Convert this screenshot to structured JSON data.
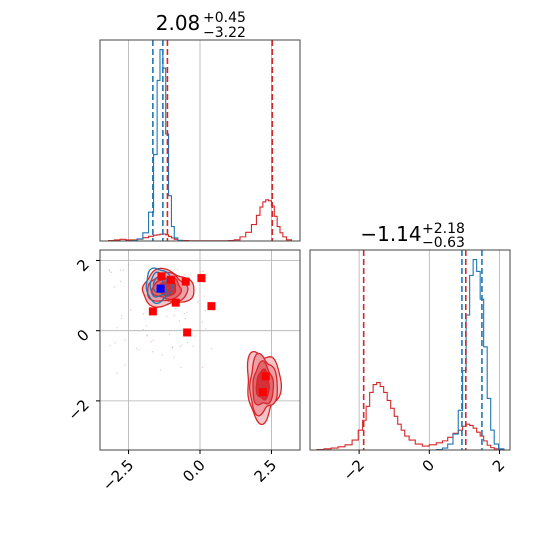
{
  "chart_data": {
    "type": "corner",
    "parameters": [
      {
        "title": "2.08",
        "title_sup": "+0.45",
        "title_sub": "−3.22",
        "range": [
          -3.5,
          3.5
        ],
        "ticks": [
          -2.5,
          0.0,
          2.5
        ],
        "tick_labels": [
          "−2.5",
          "0.0",
          "2.5"
        ]
      },
      {
        "title": "−1.14",
        "title_sup": "+2.18",
        "title_sub": "−0.63",
        "range": [
          -3.4,
          2.3
        ],
        "ticks": [
          -2,
          0,
          2
        ],
        "tick_labels": [
          "−2",
          "0",
          "2"
        ]
      }
    ],
    "grid": true,
    "colors": {
      "red": "#d62728",
      "blue": "#1f77b4"
    },
    "hist1": {
      "x": [
        -3.3,
        -3.1,
        -2.9,
        -2.7,
        -2.5,
        -2.3,
        -2.1,
        -1.9,
        -1.7,
        -1.55,
        -1.45,
        -1.35,
        -1.25,
        -1.15,
        -1.05,
        -0.95,
        -0.85,
        -0.7,
        -0.5,
        -0.3,
        -0.1,
        0.1,
        0.3,
        0.5,
        0.7,
        0.9,
        1.1,
        1.3,
        1.5,
        1.7,
        1.9,
        2.05,
        2.15,
        2.25,
        2.35,
        2.45,
        2.55,
        2.65,
        2.75,
        2.85,
        2.95,
        3.1,
        3.3
      ],
      "red": [
        0,
        0.2,
        0.5,
        0.8,
        0.5,
        0.5,
        0.9,
        1.6,
        2.3,
        2.8,
        3.0,
        3.3,
        3.4,
        3.0,
        2.2,
        1.5,
        0.8,
        0.3,
        0.2,
        0.1,
        0.1,
        0.1,
        0.1,
        0.1,
        0.1,
        0.1,
        0.2,
        0.6,
        2.0,
        4.2,
        8.0,
        12.5,
        16.5,
        19.0,
        20.0,
        19.5,
        17.0,
        12.0,
        7.0,
        4.0,
        2.0,
        0.6,
        0
      ],
      "blue": [
        0,
        0,
        0,
        0,
        0,
        0.2,
        1.0,
        4.0,
        14.0,
        42.0,
        78.0,
        93.0,
        84.0,
        52.0,
        22.0,
        7.0,
        1.5,
        0.3,
        0,
        0,
        0,
        0,
        0,
        0,
        0,
        0,
        0,
        0,
        0,
        0,
        0,
        0,
        0,
        0,
        0,
        0,
        0,
        0,
        0,
        0,
        0,
        0,
        0
      ],
      "red_lines": [
        -1.14,
        2.53
      ],
      "blue_lines": [
        -1.65,
        -1.3
      ]
    },
    "hist2": {
      "x": [
        -3.3,
        -3.1,
        -2.9,
        -2.7,
        -2.5,
        -2.3,
        -2.1,
        -1.95,
        -1.85,
        -1.75,
        -1.65,
        -1.55,
        -1.45,
        -1.35,
        -1.25,
        -1.15,
        -1.05,
        -0.95,
        -0.85,
        -0.75,
        -0.65,
        -0.5,
        -0.3,
        -0.1,
        0.1,
        0.3,
        0.45,
        0.6,
        0.75,
        0.9,
        1.0,
        1.1,
        1.2,
        1.3,
        1.4,
        1.5,
        1.6,
        1.7,
        1.8,
        1.9,
        2.05,
        2.2
      ],
      "red": [
        0,
        0.1,
        0.3,
        0.5,
        0.8,
        1.3,
        2.5,
        5,
        7.5,
        11,
        14.5,
        16.5,
        17,
        16,
        14.5,
        12.5,
        10.5,
        8.5,
        6.5,
        5,
        3.5,
        2.5,
        1.5,
        1.0,
        1.3,
        1.8,
        2.3,
        3.2,
        4.2,
        5,
        6,
        6.5,
        6.2,
        5.5,
        4.5,
        3.5,
        2.3,
        1.2,
        0.6,
        0.3,
        0.1,
        0
      ],
      "blue": [
        0,
        0,
        0,
        0,
        0,
        0,
        0,
        0,
        0,
        0,
        0,
        0,
        0,
        0,
        0,
        0,
        0,
        0,
        0,
        0,
        0,
        0,
        0,
        0,
        0,
        0.1,
        0.5,
        1.5,
        4,
        10,
        20,
        34,
        44,
        48,
        45,
        38,
        26,
        13,
        5,
        1.5,
        0.3,
        0
      ],
      "red_lines": [
        -1.87,
        1.04
      ],
      "blue_lines": [
        0.93,
        1.5
      ]
    },
    "scatter_points": [
      {
        "x": -1.35,
        "y": 1.55
      },
      {
        "x": -1.02,
        "y": 1.45
      },
      {
        "x": 0.05,
        "y": 1.5
      },
      {
        "x": -0.5,
        "y": 1.4
      },
      {
        "x": -0.85,
        "y": 0.8
      },
      {
        "x": -1.65,
        "y": 0.55
      },
      {
        "x": 0.4,
        "y": 0.7
      },
      {
        "x": -0.45,
        "y": -0.05
      },
      {
        "x": 2.3,
        "y": -1.3
      },
      {
        "x": 2.2,
        "y": -1.75
      }
    ],
    "blue_point": {
      "x": -1.38,
      "y": 1.2
    }
  }
}
